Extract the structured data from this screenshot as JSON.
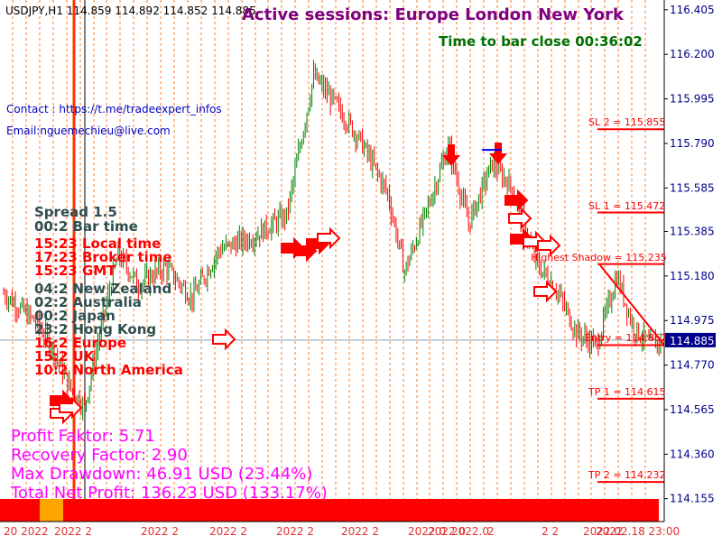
{
  "symbol_info": "USDJPY,H1  114.859 114.892 114.852 114.885",
  "sessions_text": "Active sessions:  Europe London New York",
  "bar_close_text": "Time to bar close 00:36:02",
  "contact_text": "Contact : https://t.me/tradeexpert_infos",
  "email_text": "Email:nguemechieu@live.com",
  "info_panel": [
    {
      "text": "Spread 1.5",
      "color": "#2f4f4f"
    },
    {
      "text": "00:2 Bar time",
      "color": "#2f4f4f"
    },
    {
      "text": "15:23 Local time",
      "color": "#ff0000"
    },
    {
      "text": "17:23 Broker time",
      "color": "#ff0000"
    },
    {
      "text": "15:23 GMT",
      "color": "#ff0000"
    },
    {
      "text": "04:2 New Zealand",
      "color": "#2f4f4f"
    },
    {
      "text": "02:2 Australia",
      "color": "#2f4f4f"
    },
    {
      "text": "00:2 Japan",
      "color": "#2f4f4f"
    },
    {
      "text": "23:2 Hong Kong",
      "color": "#2f4f4f"
    },
    {
      "text": "16:2 Europe",
      "color": "#ff0000"
    },
    {
      "text": "15:2 UK",
      "color": "#ff0000"
    },
    {
      "text": "10:2 North America",
      "color": "#ff0000"
    }
  ],
  "stats": [
    "Profit Faktor: 5.71",
    "Recovery Factor: 2.90",
    "Max Drawdown: 46.91 USD (23.44%)",
    "Total Net Profit: 136.23 USD (133.17%)"
  ],
  "colors": {
    "up_candle": "#008000",
    "down_candle": "#ff0000",
    "arrow": "#ff0000",
    "axis_text": "#00008b",
    "price_tag": "#00008b",
    "vline": "#ff6600"
  },
  "chart_data": {
    "type": "candlestick",
    "symbol": "USDJPY",
    "timeframe": "H1",
    "ylim": [
      114.05,
      116.45
    ],
    "y_ticks": [
      116.405,
      116.2,
      115.995,
      115.79,
      115.585,
      115.385,
      115.18,
      114.975,
      114.77,
      114.565,
      114.36,
      114.155
    ],
    "current_price": 114.885,
    "current_price_label": "114.885",
    "x_tick_labels": [
      "20 2022",
      "2022 2",
      "2022 2",
      "2022 2",
      "2022 2",
      "2022 2",
      "2022.0",
      "2022.0",
      "2022.0",
      "2",
      "2 2",
      "2022",
      "2022.02.18 23:00"
    ],
    "waypoints": [
      [
        0,
        115.1
      ],
      [
        20,
        114.96
      ],
      [
        28,
        114.86
      ],
      [
        40,
        114.66
      ],
      [
        48,
        114.58
      ],
      [
        60,
        115.02
      ],
      [
        68,
        115.28
      ],
      [
        80,
        115.14
      ],
      [
        96,
        115.22
      ],
      [
        112,
        115.08
      ],
      [
        128,
        115.3
      ],
      [
        148,
        115.36
      ],
      [
        168,
        115.46
      ],
      [
        184,
        116.1
      ],
      [
        198,
        115.96
      ],
      [
        212,
        115.8
      ],
      [
        228,
        115.56
      ],
      [
        238,
        115.2
      ],
      [
        252,
        115.5
      ],
      [
        264,
        115.78
      ],
      [
        276,
        115.42
      ],
      [
        290,
        115.7
      ],
      [
        302,
        115.58
      ],
      [
        316,
        115.24
      ],
      [
        328,
        115.12
      ],
      [
        340,
        114.92
      ],
      [
        352,
        114.86
      ],
      [
        364,
        115.18
      ],
      [
        374,
        114.94
      ],
      [
        384,
        114.86
      ],
      [
        390,
        114.88
      ]
    ],
    "levels": [
      {
        "label": "SL 2 = 115.855",
        "price": 115.855
      },
      {
        "label": "SL 1 = 115.472",
        "price": 115.472
      },
      {
        "label": "Highest Shadow = 115.235",
        "price": 115.235
      },
      {
        "label": "Entry = 114.862",
        "price": 114.862
      },
      {
        "label": "TP 1 = 114.615",
        "price": 114.615
      },
      {
        "label": "TP 2 = 114.232",
        "price": 114.232
      }
    ],
    "vertical_line_count": 48
  }
}
